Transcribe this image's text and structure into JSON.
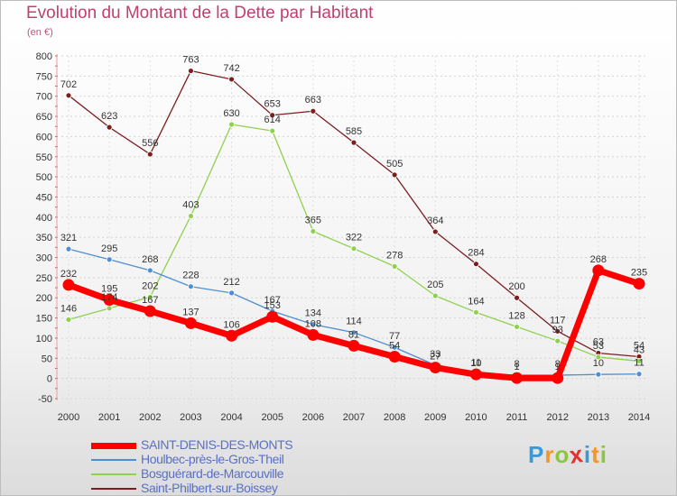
{
  "chart_data": {
    "type": "line",
    "title": "Evolution du Montant de la Dette par Habitant",
    "unit": "(en €)",
    "xlabel": "",
    "ylabel": "",
    "x": [
      "2000",
      "2001",
      "2002",
      "2003",
      "2004",
      "2005",
      "2006",
      "2007",
      "2008",
      "2009",
      "2010",
      "2011",
      "2012",
      "2013",
      "2014"
    ],
    "ylim": [
      -50,
      800
    ],
    "yticks": [
      "800",
      "750",
      "700",
      "650",
      "600",
      "550",
      "500",
      "450",
      "400",
      "350",
      "300",
      "250",
      "200",
      "150",
      "100",
      "50",
      "0",
      "-50"
    ],
    "grid": true,
    "legend_position": "bottom-left",
    "series": [
      {
        "name": "SAINT-DENIS-DES-MONTS",
        "color": "#ff0000",
        "values": [
          232,
          195,
          167,
          137,
          106,
          153,
          108,
          81,
          54,
          27,
          10,
          1,
          1,
          268,
          235
        ],
        "labels": [
          "232",
          "195",
          "167",
          "137",
          "106",
          "153",
          "108",
          "81",
          "54",
          "27",
          "10",
          "1",
          "1",
          "268",
          "235"
        ]
      },
      {
        "name": "Houlbec-près-le-Gros-Theil",
        "color": "#4f8fd1",
        "values": [
          321,
          295,
          268,
          228,
          212,
          167,
          134,
          114,
          77,
          33,
          11,
          8,
          8,
          10,
          11
        ],
        "labels": [
          "321",
          "295",
          "268",
          "228",
          "212",
          "167",
          "134",
          "114",
          "77",
          "33",
          "11",
          "8",
          "8",
          "10",
          "11"
        ]
      },
      {
        "name": "Bosguérard-de-Marcouville",
        "color": "#8fd14f",
        "values": [
          146,
          174,
          202,
          403,
          630,
          614,
          365,
          322,
          278,
          205,
          164,
          128,
          93,
          53,
          43
        ],
        "labels": [
          "146",
          "174",
          "202",
          "403",
          "630",
          "614",
          "365",
          "322",
          "278",
          "205",
          "164",
          "128",
          "93",
          "53",
          "43"
        ]
      },
      {
        "name": "Saint-Philbert-sur-Boissey",
        "color": "#7a1f1f",
        "values": [
          702,
          623,
          556,
          763,
          742,
          653,
          663,
          585,
          505,
          364,
          284,
          200,
          117,
          63,
          54
        ],
        "labels": [
          "702",
          "623",
          "556",
          "763",
          "742",
          "653",
          "663",
          "585",
          "505",
          "364",
          "284",
          "200",
          "117",
          "63",
          "54"
        ]
      }
    ]
  },
  "logo": {
    "letters": [
      "P",
      "r",
      "o",
      "x",
      "i",
      "t",
      "i"
    ],
    "colors": [
      "#3a9ad9",
      "#f0962c",
      "#8cc63f",
      "#e0322f",
      "#3a9ad9",
      "#f0962c",
      "#8cc63f"
    ]
  }
}
